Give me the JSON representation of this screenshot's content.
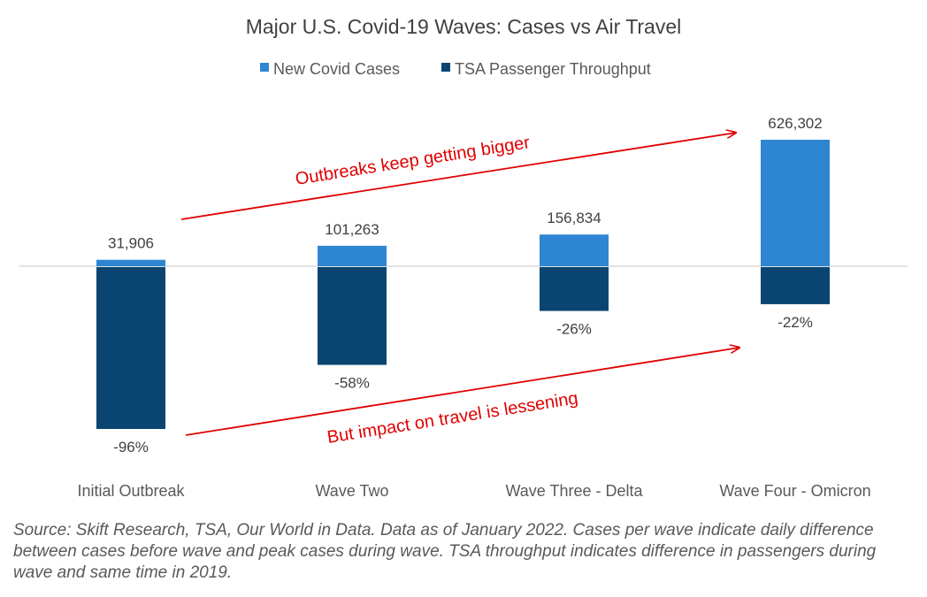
{
  "chart_data": {
    "type": "bar",
    "title": "Major U.S. Covid-19 Waves: Cases vs Air Travel",
    "categories": [
      "Initial Outbreak",
      "Wave Two",
      "Wave Three - Delta",
      "Wave Four - Omicron"
    ],
    "series": [
      {
        "name": "New Covid Cases",
        "color": "#2e86d3",
        "values": [
          31906,
          101263,
          156834,
          626302
        ],
        "labels": [
          "31,906",
          "101,263",
          "156,834",
          "626,302"
        ]
      },
      {
        "name": "TSA Passenger Throughput",
        "color": "#0b4571",
        "values": [
          -96,
          -58,
          -26,
          -22
        ],
        "labels": [
          "-96%",
          "-58%",
          "-26%",
          "-22%"
        ]
      }
    ],
    "legend_position": "top-center",
    "grid": false,
    "annotations": [
      "Outbreaks keep getting bigger",
      "But impact on travel is lessening"
    ],
    "annotation_color": "#e00000"
  },
  "source": "Source: Skift Research, TSA, Our World in Data. Data as of January 2022. Cases per wave indicate daily difference between cases before wave and peak cases during wave.  TSA throughput indicates difference in passengers during wave and same time in 2019."
}
